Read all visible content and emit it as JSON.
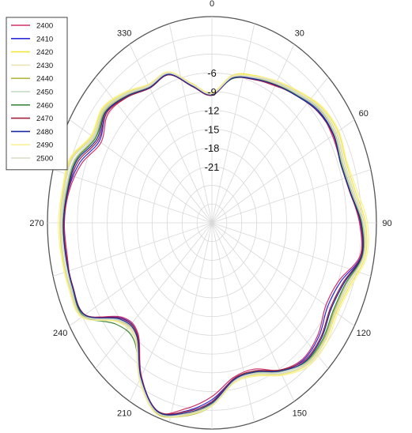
{
  "chart_data": {
    "type": "line",
    "subtype": "polar",
    "title": "",
    "angle_direction": "clockwise",
    "zero_angle": "top",
    "angle_ticks": [
      {
        "angle": 0,
        "label": "0"
      },
      {
        "angle": 30,
        "label": "30"
      },
      {
        "angle": 60,
        "label": "60"
      },
      {
        "angle": 90,
        "label": "90"
      },
      {
        "angle": 120,
        "label": "120"
      },
      {
        "angle": 150,
        "label": "150"
      },
      {
        "angle": 180,
        "label": "180"
      },
      {
        "angle": 210,
        "label": "210"
      },
      {
        "angle": 240,
        "label": "240"
      },
      {
        "angle": 270,
        "label": "270"
      },
      {
        "angle": 300,
        "label": "300"
      },
      {
        "angle": 330,
        "label": "330"
      }
    ],
    "radial_ticks": [
      {
        "value": -6,
        "label": "-6"
      },
      {
        "value": -9,
        "label": "-9"
      },
      {
        "value": -12,
        "label": "-12"
      },
      {
        "value": -15,
        "label": "-15"
      },
      {
        "value": -18,
        "label": "-18"
      },
      {
        "value": -21,
        "label": "-21"
      }
    ],
    "rlim": [
      -30,
      3
    ],
    "grid": true,
    "legend_position": "top-left",
    "theta": [
      0,
      10,
      20,
      30,
      40,
      50,
      60,
      70,
      80,
      90,
      100,
      110,
      120,
      130,
      140,
      150,
      160,
      170,
      180,
      190,
      200,
      210,
      220,
      230,
      240,
      250,
      260,
      270,
      280,
      290,
      300,
      310,
      320,
      330,
      340,
      350
    ],
    "base_values": [
      -9.5,
      -6.5,
      -5.5,
      -4.5,
      -3.5,
      -2.2,
      -1.8,
      -2.5,
      -1.8,
      0.0,
      0.5,
      -1.5,
      -2.0,
      -1.0,
      -0.8,
      -2.5,
      -4.5,
      -4.5,
      -1.2,
      0.8,
      2.0,
      -1.5,
      -6.5,
      -6.0,
      -0.5,
      -0.2,
      -0.2,
      -0.2,
      -0.5,
      -0.8,
      -3.0,
      -2.2,
      -3.5,
      -5.0,
      -4.8,
      -7.8
    ],
    "series": [
      {
        "name": "2400",
        "color": "#d0306a",
        "offsets": [
          0.0,
          0.2,
          0.0,
          -0.2,
          0.3,
          0.2,
          -0.3,
          0.1,
          0.0,
          -0.4,
          -0.3,
          -1.4,
          -1.6,
          -1.2,
          -0.8,
          -0.3,
          -0.6,
          -0.4,
          -1.0,
          -0.6,
          0.2,
          -0.2,
          -0.4,
          -0.5,
          0.0,
          0.1,
          -0.3,
          -0.2,
          -0.4,
          -1.4,
          -1.3,
          -0.6,
          -0.2,
          0.0,
          0.3,
          0.0
        ]
      },
      {
        "name": "2410",
        "color": "#2c2cd8",
        "offsets": [
          0.1,
          0.1,
          0.1,
          0.0,
          0.1,
          0.2,
          0.0,
          0.1,
          0.1,
          -0.2,
          -0.1,
          -1.0,
          -1.2,
          -0.9,
          -0.6,
          -0.1,
          -0.3,
          -0.1,
          -0.5,
          -0.2,
          0.3,
          0.0,
          -0.2,
          -0.3,
          0.2,
          0.2,
          -0.1,
          0.0,
          -0.2,
          -1.0,
          -0.9,
          -0.3,
          0.0,
          0.1,
          0.2,
          0.1
        ]
      },
      {
        "name": "2420",
        "color": "#f0e840",
        "offsets": [
          0.3,
          0.5,
          0.6,
          0.6,
          0.8,
          0.9,
          1.0,
          1.1,
          1.0,
          0.8,
          0.7,
          0.9,
          0.8,
          0.6,
          0.5,
          0.5,
          0.4,
          0.3,
          0.2,
          0.2,
          0.2,
          0.3,
          0.4,
          0.5,
          0.5,
          0.6,
          0.7,
          0.7,
          0.8,
          0.9,
          0.8,
          0.7,
          0.6,
          0.5,
          0.5,
          0.4
        ]
      },
      {
        "name": "2430",
        "color": "#e8e4b4",
        "offsets": [
          0.2,
          0.4,
          0.4,
          0.5,
          0.6,
          0.7,
          0.7,
          0.8,
          0.7,
          0.5,
          0.4,
          0.6,
          0.6,
          0.5,
          0.4,
          0.4,
          0.3,
          0.3,
          0.4,
          0.3,
          0.3,
          0.4,
          0.5,
          0.4,
          0.3,
          0.4,
          0.5,
          0.5,
          0.6,
          0.7,
          0.6,
          0.5,
          0.5,
          0.4,
          0.4,
          0.3
        ]
      },
      {
        "name": "2440",
        "color": "#b4b848",
        "offsets": [
          0.0,
          0.1,
          0.2,
          0.1,
          0.3,
          0.4,
          0.3,
          0.4,
          0.3,
          0.2,
          0.2,
          0.2,
          0.3,
          0.2,
          0.1,
          0.0,
          0.0,
          0.2,
          0.5,
          0.6,
          0.4,
          0.2,
          0.1,
          0.3,
          0.2,
          0.1,
          0.1,
          0.2,
          0.2,
          0.1,
          0.1,
          0.2,
          0.1,
          0.1,
          0.0,
          0.0
        ]
      },
      {
        "name": "2450",
        "color": "#c0d8c4",
        "offsets": [
          0.1,
          0.2,
          0.2,
          0.3,
          0.3,
          0.3,
          0.2,
          0.3,
          0.2,
          0.1,
          0.0,
          0.1,
          0.1,
          0.0,
          0.0,
          0.1,
          0.1,
          0.1,
          0.3,
          0.4,
          0.3,
          0.1,
          0.0,
          0.2,
          0.1,
          0.2,
          0.2,
          0.3,
          0.3,
          0.2,
          0.3,
          0.4,
          0.3,
          0.2,
          0.2,
          0.1
        ]
      },
      {
        "name": "2460",
        "color": "#3e8a3e",
        "offsets": [
          0.0,
          -0.1,
          0.0,
          0.0,
          0.1,
          0.0,
          0.0,
          0.1,
          0.0,
          0.0,
          0.1,
          0.0,
          0.1,
          0.0,
          -0.1,
          -0.2,
          -0.2,
          0.0,
          0.2,
          0.3,
          0.1,
          0.0,
          0.9,
          1.2,
          0.3,
          0.0,
          0.0,
          0.0,
          0.0,
          -0.1,
          0.0,
          0.0,
          -0.1,
          0.0,
          0.0,
          0.0
        ]
      },
      {
        "name": "2470",
        "color": "#a02040",
        "offsets": [
          -0.1,
          0.0,
          -0.1,
          -0.1,
          0.0,
          -0.1,
          -0.1,
          0.0,
          -0.1,
          -0.2,
          -0.1,
          -0.5,
          -0.6,
          -0.5,
          -0.4,
          -0.3,
          -0.3,
          -0.2,
          -0.2,
          -0.1,
          0.0,
          -0.1,
          -0.2,
          -0.2,
          -0.1,
          -0.1,
          -0.1,
          -0.1,
          -0.2,
          -0.6,
          -0.6,
          -0.3,
          -0.2,
          -0.1,
          0.0,
          -0.1
        ]
      },
      {
        "name": "2480",
        "color": "#1a2aa0",
        "offsets": [
          0.0,
          0.0,
          0.0,
          0.0,
          0.0,
          0.0,
          0.0,
          0.0,
          0.0,
          -0.1,
          0.0,
          -0.3,
          -0.4,
          -0.3,
          -0.2,
          -0.1,
          -0.1,
          0.0,
          0.0,
          0.1,
          0.1,
          0.0,
          0.0,
          0.0,
          0.0,
          0.0,
          0.0,
          0.0,
          -0.1,
          -0.3,
          -0.3,
          -0.1,
          0.0,
          0.0,
          0.1,
          0.0
        ]
      },
      {
        "name": "2490",
        "color": "#f8f098",
        "offsets": [
          0.2,
          0.3,
          0.5,
          0.7,
          0.9,
          1.1,
          1.2,
          1.3,
          1.4,
          1.2,
          1.0,
          1.2,
          1.1,
          1.0,
          0.8,
          0.7,
          0.6,
          0.5,
          0.5,
          0.5,
          0.6,
          0.6,
          0.6,
          0.7,
          0.7,
          0.8,
          0.9,
          1.0,
          1.0,
          1.1,
          1.0,
          0.9,
          0.8,
          0.6,
          0.5,
          0.3
        ]
      },
      {
        "name": "2500",
        "color": "#d8d8c8",
        "offsets": [
          0.1,
          0.2,
          0.3,
          0.4,
          0.5,
          0.6,
          0.6,
          0.7,
          0.6,
          0.5,
          0.4,
          0.5,
          0.5,
          0.4,
          0.3,
          0.3,
          0.2,
          0.2,
          0.3,
          0.3,
          0.3,
          0.3,
          0.4,
          0.4,
          0.4,
          0.5,
          0.5,
          0.6,
          0.6,
          0.6,
          0.5,
          0.5,
          0.4,
          0.3,
          0.3,
          0.2
        ]
      }
    ]
  }
}
